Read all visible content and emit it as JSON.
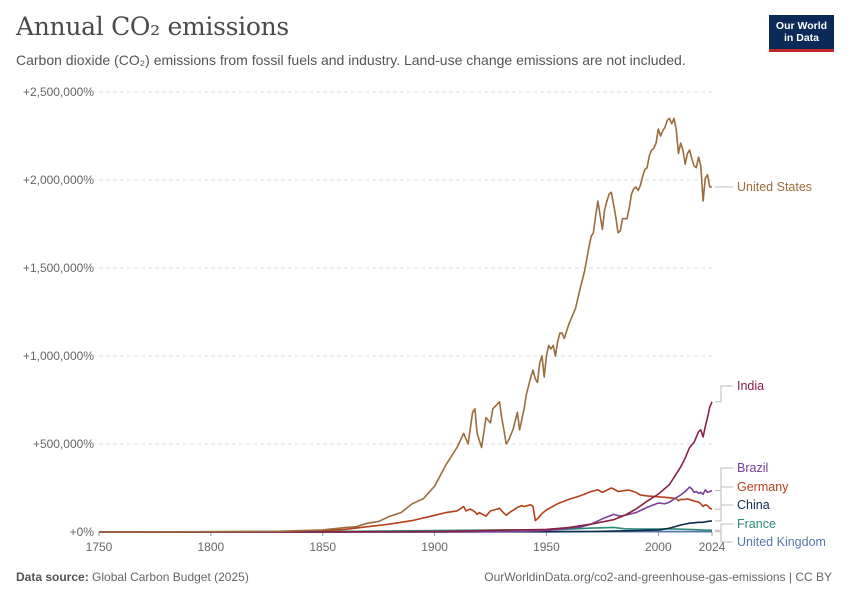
{
  "header": {
    "title": "Annual CO₂ emissions",
    "subtitle": "Carbon dioxide (CO₂) emissions from fossil fuels and industry. Land-use change emissions are not included."
  },
  "logo": {
    "line1": "Our World",
    "line2": "in Data"
  },
  "footer": {
    "source_label": "Data source:",
    "source_text": "Global Carbon Budget (2025)",
    "link_text": "OurWorldinData.org/co2-and-greenhouse-gas-emissions | CC BY"
  },
  "colors": {
    "United States": "#9a6d3c",
    "India": "#8a2140",
    "Brazil": "#7b3f98",
    "Germany": "#b5401a",
    "China": "#0d2b4e",
    "France": "#2a8a7a",
    "United Kingdom": "#5577aa",
    "grid": "#dddddd",
    "axis_text": "#666666"
  },
  "chart_data": {
    "type": "line",
    "title": "Annual CO₂ emissions",
    "xlabel": "",
    "ylabel": "",
    "xlim": [
      1750,
      2024
    ],
    "ylim": [
      0,
      2500000
    ],
    "grid": true,
    "y_ticks": [
      0,
      500000,
      1000000,
      1500000,
      2000000,
      2500000
    ],
    "y_tick_labels": [
      "+0%",
      "+500,000%",
      "+1,000,000%",
      "+1,500,000%",
      "+2,000,000%",
      "+2,500,000%"
    ],
    "x_ticks": [
      1750,
      1800,
      1850,
      1900,
      1950,
      2000,
      2024
    ],
    "x_tick_labels": [
      "1750",
      "1800",
      "1850",
      "1900",
      "1950",
      "2000",
      "2024"
    ],
    "legend_placement": "right, labels at line ends",
    "series": [
      {
        "name": "United States",
        "points": [
          [
            1750,
            0
          ],
          [
            1800,
            1500
          ],
          [
            1830,
            4000
          ],
          [
            1850,
            12000
          ],
          [
            1860,
            25000
          ],
          [
            1865,
            30000
          ],
          [
            1870,
            50000
          ],
          [
            1875,
            60000
          ],
          [
            1880,
            90000
          ],
          [
            1885,
            110000
          ],
          [
            1890,
            160000
          ],
          [
            1895,
            190000
          ],
          [
            1900,
            260000
          ],
          [
            1905,
            380000
          ],
          [
            1910,
            480000
          ],
          [
            1913,
            560000
          ],
          [
            1915,
            500000
          ],
          [
            1917,
            680000
          ],
          [
            1918,
            700000
          ],
          [
            1919,
            560000
          ],
          [
            1921,
            480000
          ],
          [
            1923,
            650000
          ],
          [
            1925,
            620000
          ],
          [
            1926,
            700000
          ],
          [
            1929,
            740000
          ],
          [
            1930,
            650000
          ],
          [
            1931,
            580000
          ],
          [
            1932,
            500000
          ],
          [
            1933,
            520000
          ],
          [
            1935,
            580000
          ],
          [
            1937,
            680000
          ],
          [
            1938,
            580000
          ],
          [
            1940,
            700000
          ],
          [
            1941,
            780000
          ],
          [
            1943,
            880000
          ],
          [
            1944,
            920000
          ],
          [
            1945,
            870000
          ],
          [
            1946,
            850000
          ],
          [
            1947,
            960000
          ],
          [
            1948,
            1000000
          ],
          [
            1949,
            880000
          ],
          [
            1950,
            1000000
          ],
          [
            1951,
            1060000
          ],
          [
            1952,
            1040000
          ],
          [
            1953,
            1060000
          ],
          [
            1954,
            1000000
          ],
          [
            1955,
            1080000
          ],
          [
            1956,
            1130000
          ],
          [
            1957,
            1130000
          ],
          [
            1958,
            1100000
          ],
          [
            1960,
            1180000
          ],
          [
            1963,
            1270000
          ],
          [
            1965,
            1380000
          ],
          [
            1967,
            1480000
          ],
          [
            1969,
            1620000
          ],
          [
            1970,
            1680000
          ],
          [
            1971,
            1700000
          ],
          [
            1972,
            1800000
          ],
          [
            1973,
            1880000
          ],
          [
            1974,
            1800000
          ],
          [
            1975,
            1720000
          ],
          [
            1976,
            1830000
          ],
          [
            1977,
            1880000
          ],
          [
            1978,
            1920000
          ],
          [
            1979,
            1930000
          ],
          [
            1980,
            1860000
          ],
          [
            1981,
            1790000
          ],
          [
            1982,
            1700000
          ],
          [
            1983,
            1710000
          ],
          [
            1984,
            1780000
          ],
          [
            1985,
            1780000
          ],
          [
            1986,
            1780000
          ],
          [
            1987,
            1840000
          ],
          [
            1988,
            1920000
          ],
          [
            1989,
            1950000
          ],
          [
            1990,
            1960000
          ],
          [
            1991,
            1940000
          ],
          [
            1992,
            1970000
          ],
          [
            1993,
            2020000
          ],
          [
            1994,
            2060000
          ],
          [
            1995,
            2070000
          ],
          [
            1996,
            2140000
          ],
          [
            1997,
            2170000
          ],
          [
            1998,
            2180000
          ],
          [
            1999,
            2210000
          ],
          [
            2000,
            2290000
          ],
          [
            2001,
            2250000
          ],
          [
            2002,
            2280000
          ],
          [
            2003,
            2300000
          ],
          [
            2004,
            2340000
          ],
          [
            2005,
            2350000
          ],
          [
            2006,
            2320000
          ],
          [
            2007,
            2350000
          ],
          [
            2008,
            2290000
          ],
          [
            2009,
            2150000
          ],
          [
            2010,
            2210000
          ],
          [
            2011,
            2170000
          ],
          [
            2012,
            2090000
          ],
          [
            2013,
            2150000
          ],
          [
            2014,
            2170000
          ],
          [
            2015,
            2120000
          ],
          [
            2016,
            2080000
          ],
          [
            2017,
            2070000
          ],
          [
            2018,
            2130000
          ],
          [
            2019,
            2080000
          ],
          [
            2020,
            1880000
          ],
          [
            2021,
            2010000
          ],
          [
            2022,
            2030000
          ],
          [
            2023,
            1960000
          ],
          [
            2024,
            1960000
          ]
        ]
      },
      {
        "name": "India",
        "points": [
          [
            1750,
            0
          ],
          [
            1850,
            0
          ],
          [
            1900,
            3000
          ],
          [
            1950,
            15000
          ],
          [
            1960,
            25000
          ],
          [
            1970,
            45000
          ],
          [
            1980,
            70000
          ],
          [
            1985,
            95000
          ],
          [
            1990,
            130000
          ],
          [
            1995,
            175000
          ],
          [
            2000,
            215000
          ],
          [
            2005,
            270000
          ],
          [
            2008,
            330000
          ],
          [
            2010,
            370000
          ],
          [
            2012,
            420000
          ],
          [
            2014,
            480000
          ],
          [
            2016,
            510000
          ],
          [
            2018,
            570000
          ],
          [
            2019,
            580000
          ],
          [
            2020,
            540000
          ],
          [
            2021,
            600000
          ],
          [
            2022,
            650000
          ],
          [
            2023,
            710000
          ],
          [
            2024,
            740000
          ]
        ]
      },
      {
        "name": "Brazil",
        "points": [
          [
            1750,
            0
          ],
          [
            1900,
            500
          ],
          [
            1940,
            3000
          ],
          [
            1950,
            9000
          ],
          [
            1955,
            14000
          ],
          [
            1960,
            22000
          ],
          [
            1965,
            27000
          ],
          [
            1970,
            45000
          ],
          [
            1975,
            75000
          ],
          [
            1980,
            100000
          ],
          [
            1983,
            90000
          ],
          [
            1985,
            95000
          ],
          [
            1990,
            110000
          ],
          [
            1995,
            140000
          ],
          [
            2000,
            165000
          ],
          [
            2003,
            160000
          ],
          [
            2005,
            170000
          ],
          [
            2008,
            195000
          ],
          [
            2010,
            210000
          ],
          [
            2012,
            230000
          ],
          [
            2014,
            255000
          ],
          [
            2015,
            245000
          ],
          [
            2016,
            225000
          ],
          [
            2017,
            230000
          ],
          [
            2018,
            220000
          ],
          [
            2019,
            225000
          ],
          [
            2020,
            215000
          ],
          [
            2021,
            240000
          ],
          [
            2022,
            225000
          ],
          [
            2023,
            230000
          ],
          [
            2024,
            235000
          ]
        ]
      },
      {
        "name": "Germany",
        "points": [
          [
            1750,
            0
          ],
          [
            1800,
            1000
          ],
          [
            1830,
            2000
          ],
          [
            1850,
            8000
          ],
          [
            1860,
            15000
          ],
          [
            1870,
            30000
          ],
          [
            1880,
            45000
          ],
          [
            1890,
            65000
          ],
          [
            1900,
            95000
          ],
          [
            1905,
            110000
          ],
          [
            1910,
            120000
          ],
          [
            1913,
            145000
          ],
          [
            1914,
            120000
          ],
          [
            1916,
            130000
          ],
          [
            1918,
            115000
          ],
          [
            1919,
            100000
          ],
          [
            1920,
            110000
          ],
          [
            1923,
            90000
          ],
          [
            1925,
            120000
          ],
          [
            1928,
            130000
          ],
          [
            1929,
            135000
          ],
          [
            1930,
            120000
          ],
          [
            1932,
            95000
          ],
          [
            1934,
            115000
          ],
          [
            1937,
            140000
          ],
          [
            1939,
            150000
          ],
          [
            1940,
            145000
          ],
          [
            1943,
            155000
          ],
          [
            1944,
            145000
          ],
          [
            1945,
            65000
          ],
          [
            1946,
            75000
          ],
          [
            1947,
            90000
          ],
          [
            1948,
            105000
          ],
          [
            1950,
            125000
          ],
          [
            1955,
            160000
          ],
          [
            1960,
            185000
          ],
          [
            1965,
            205000
          ],
          [
            1970,
            230000
          ],
          [
            1973,
            240000
          ],
          [
            1975,
            225000
          ],
          [
            1979,
            250000
          ],
          [
            1980,
            245000
          ],
          [
            1982,
            230000
          ],
          [
            1985,
            235000
          ],
          [
            1987,
            238000
          ],
          [
            1990,
            225000
          ],
          [
            1992,
            210000
          ],
          [
            1995,
            205000
          ],
          [
            2000,
            200000
          ],
          [
            2005,
            195000
          ],
          [
            2008,
            190000
          ],
          [
            2009,
            178000
          ],
          [
            2010,
            185000
          ],
          [
            2012,
            185000
          ],
          [
            2013,
            188000
          ],
          [
            2015,
            180000
          ],
          [
            2018,
            170000
          ],
          [
            2019,
            160000
          ],
          [
            2020,
            145000
          ],
          [
            2021,
            155000
          ],
          [
            2022,
            150000
          ],
          [
            2023,
            135000
          ],
          [
            2024,
            130000
          ]
        ]
      },
      {
        "name": "China",
        "points": [
          [
            1750,
            0
          ],
          [
            1900,
            0
          ],
          [
            1950,
            1000
          ],
          [
            1970,
            3000
          ],
          [
            1980,
            5000
          ],
          [
            1990,
            8000
          ],
          [
            2000,
            12000
          ],
          [
            2002,
            15000
          ],
          [
            2005,
            22000
          ],
          [
            2008,
            32000
          ],
          [
            2010,
            40000
          ],
          [
            2012,
            45000
          ],
          [
            2014,
            50000
          ],
          [
            2016,
            52000
          ],
          [
            2018,
            55000
          ],
          [
            2020,
            55000
          ],
          [
            2022,
            60000
          ],
          [
            2024,
            63000
          ]
        ]
      },
      {
        "name": "France",
        "points": [
          [
            1750,
            0
          ],
          [
            1850,
            3000
          ],
          [
            1900,
            8000
          ],
          [
            1920,
            10000
          ],
          [
            1930,
            12000
          ],
          [
            1950,
            12000
          ],
          [
            1960,
            16000
          ],
          [
            1970,
            22000
          ],
          [
            1975,
            24000
          ],
          [
            1980,
            26000
          ],
          [
            1985,
            18000
          ],
          [
            1990,
            17000
          ],
          [
            2000,
            17000
          ],
          [
            2005,
            18000
          ],
          [
            2010,
            16000
          ],
          [
            2015,
            14000
          ],
          [
            2020,
            11000
          ],
          [
            2024,
            10000
          ]
        ]
      },
      {
        "name": "United Kingdom",
        "points": [
          [
            1750,
            0
          ],
          [
            1800,
            500
          ],
          [
            1850,
            1000
          ],
          [
            1900,
            1500
          ],
          [
            1950,
            2000
          ],
          [
            2000,
            2500
          ],
          [
            2024,
            2000
          ]
        ]
      }
    ]
  }
}
